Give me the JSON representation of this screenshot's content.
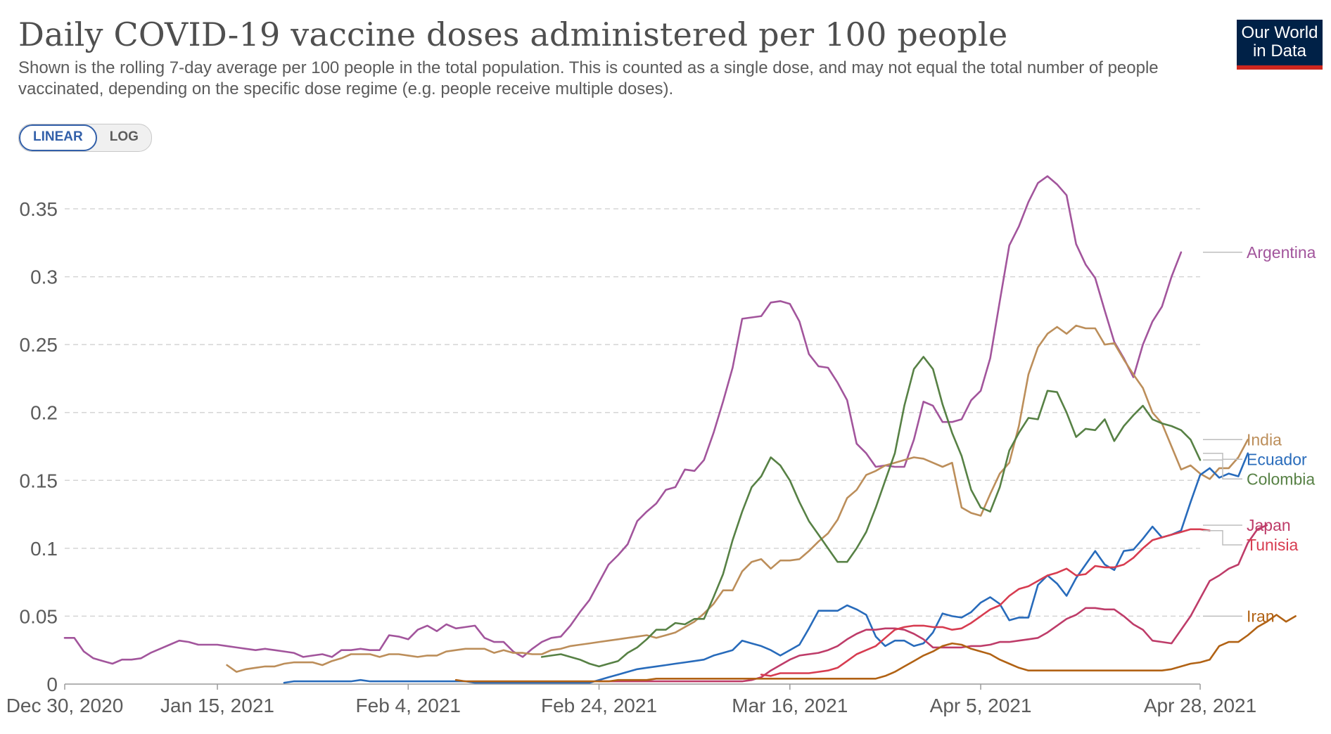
{
  "header": {
    "title": "Daily COVID-19 vaccine doses administered per 100 people",
    "subtitle": "Shown is the rolling 7-day average per 100 people in the total population. This is counted as a single dose, and may not equal the total number of people vaccinated, depending on the specific dose regime (e.g. people receive multiple doses).",
    "logo_line1": "Our World",
    "logo_line2": "in Data"
  },
  "controls": {
    "linear_label": "LINEAR",
    "log_label": "LOG",
    "active": "linear"
  },
  "chart_data": {
    "type": "line",
    "title": "Daily COVID-19 vaccine doses administered per 100 people",
    "x_start": "Dec 30, 2020",
    "x_end": "Apr 28, 2021",
    "xticks": [
      {
        "label": "Dec 30, 2020",
        "day": 0
      },
      {
        "label": "Jan 15, 2021",
        "day": 16
      },
      {
        "label": "Feb 4, 2021",
        "day": 36
      },
      {
        "label": "Feb 24, 2021",
        "day": 56
      },
      {
        "label": "Mar 16, 2021",
        "day": 76
      },
      {
        "label": "Apr 5, 2021",
        "day": 96
      },
      {
        "label": "Apr 28, 2021",
        "day": 119
      }
    ],
    "yticks": [
      0,
      0.05,
      0.1,
      0.15,
      0.2,
      0.25,
      0.3,
      0.35
    ],
    "ytick_labels": [
      "0",
      "0.05",
      "0.1",
      "0.15",
      "0.2",
      "0.25",
      "0.3",
      "0.35"
    ],
    "ylim": [
      0,
      0.35
    ],
    "grid": true,
    "legend": "right",
    "series": [
      {
        "name": "Argentina",
        "color": "#a2559c",
        "start_day": 0,
        "values": [
          0.034,
          0.034,
          0.024,
          0.019,
          0.017,
          0.015,
          0.018,
          0.018,
          0.019,
          0.023,
          0.026,
          0.029,
          0.032,
          0.031,
          0.029,
          0.029,
          0.029,
          0.028,
          0.027,
          0.026,
          0.025,
          0.026,
          0.025,
          0.024,
          0.023,
          0.02,
          0.021,
          0.022,
          0.02,
          0.025,
          0.025,
          0.026,
          0.025,
          0.025,
          0.036,
          0.035,
          0.033,
          0.04,
          0.043,
          0.039,
          0.044,
          0.041,
          0.042,
          0.043,
          0.034,
          0.031,
          0.031,
          0.024,
          0.02,
          0.026,
          0.031,
          0.034,
          0.035,
          0.043,
          0.053,
          0.062,
          0.075,
          0.088,
          0.095,
          0.103,
          0.12,
          0.127,
          0.133,
          0.143,
          0.145,
          0.158,
          0.157,
          0.165,
          0.185,
          0.208,
          0.233,
          0.269,
          0.27,
          0.271,
          0.281,
          0.282,
          0.28,
          0.267,
          0.243,
          0.234,
          0.233,
          0.222,
          0.209,
          0.177,
          0.17,
          0.16,
          0.161,
          0.16,
          0.16,
          0.18,
          0.208,
          0.205,
          0.193,
          0.193,
          0.195,
          0.209,
          0.216,
          0.24,
          0.282,
          0.323,
          0.337,
          0.355,
          0.369,
          0.374,
          0.368,
          0.36,
          0.324,
          0.309,
          0.299,
          0.275,
          0.252,
          0.24,
          0.226,
          0.25,
          0.267,
          0.278,
          0.3,
          0.318
        ]
      },
      {
        "name": "India",
        "color": "#bc8e5a",
        "start_day": 17,
        "values": [
          0.014,
          0.009,
          0.011,
          0.012,
          0.013,
          0.013,
          0.015,
          0.016,
          0.016,
          0.016,
          0.014,
          0.017,
          0.019,
          0.022,
          0.022,
          0.022,
          0.02,
          0.022,
          0.022,
          0.021,
          0.02,
          0.021,
          0.021,
          0.024,
          0.025,
          0.026,
          0.026,
          0.026,
          0.023,
          0.025,
          0.023,
          0.023,
          0.022,
          0.022,
          0.025,
          0.026,
          0.028,
          0.029,
          0.03,
          0.031,
          0.032,
          0.033,
          0.034,
          0.035,
          0.036,
          0.034,
          0.036,
          0.038,
          0.042,
          0.046,
          0.052,
          0.059,
          0.069,
          0.069,
          0.083,
          0.09,
          0.092,
          0.085,
          0.091,
          0.091,
          0.092,
          0.098,
          0.105,
          0.111,
          0.121,
          0.137,
          0.143,
          0.154,
          0.157,
          0.161,
          0.163,
          0.165,
          0.167,
          0.166,
          0.163,
          0.16,
          0.163,
          0.13,
          0.126,
          0.124,
          0.14,
          0.155,
          0.163,
          0.19,
          0.228,
          0.248,
          0.258,
          0.263,
          0.258,
          0.264,
          0.262,
          0.262,
          0.25,
          0.251,
          0.239,
          0.228,
          0.218,
          0.2,
          0.192,
          0.175,
          0.158,
          0.161,
          0.155,
          0.151,
          0.159,
          0.159,
          0.167,
          0.18
        ]
      },
      {
        "name": "Ecuador",
        "color": "#286bbb",
        "start_day": 23,
        "values": [
          0.001,
          0.002,
          0.002,
          0.002,
          0.002,
          0.002,
          0.002,
          0.002,
          0.003,
          0.002,
          0.002,
          0.002,
          0.002,
          0.002,
          0.002,
          0.002,
          0.002,
          0.002,
          0.002,
          0.002,
          0.001,
          0.001,
          0.001,
          0.001,
          0.001,
          0.001,
          0.001,
          0.001,
          0.001,
          0.001,
          0.001,
          0.001,
          0.001,
          0.003,
          0.005,
          0.007,
          0.009,
          0.011,
          0.012,
          0.013,
          0.014,
          0.015,
          0.016,
          0.017,
          0.018,
          0.021,
          0.023,
          0.025,
          0.032,
          0.03,
          0.028,
          0.025,
          0.021,
          0.025,
          0.029,
          0.041,
          0.054,
          0.054,
          0.054,
          0.058,
          0.055,
          0.051,
          0.035,
          0.028,
          0.032,
          0.032,
          0.028,
          0.03,
          0.038,
          0.052,
          0.05,
          0.049,
          0.053,
          0.06,
          0.064,
          0.059,
          0.047,
          0.049,
          0.049,
          0.073,
          0.08,
          0.074,
          0.065,
          0.078,
          0.088,
          0.098,
          0.088,
          0.084,
          0.098,
          0.099,
          0.107,
          0.116,
          0.108,
          0.11,
          0.113,
          0.134,
          0.154,
          0.159,
          0.152,
          0.155,
          0.153,
          0.17
        ]
      },
      {
        "name": "Colombia",
        "color": "#578145",
        "start_day": 50,
        "values": [
          0.02,
          0.021,
          0.022,
          0.02,
          0.018,
          0.015,
          0.013,
          0.015,
          0.017,
          0.023,
          0.027,
          0.033,
          0.04,
          0.04,
          0.045,
          0.044,
          0.048,
          0.048,
          0.064,
          0.081,
          0.106,
          0.127,
          0.145,
          0.153,
          0.167,
          0.161,
          0.15,
          0.134,
          0.12,
          0.11,
          0.1,
          0.09,
          0.09,
          0.1,
          0.112,
          0.13,
          0.15,
          0.17,
          0.205,
          0.232,
          0.241,
          0.232,
          0.206,
          0.185,
          0.168,
          0.143,
          0.13,
          0.127,
          0.145,
          0.172,
          0.185,
          0.196,
          0.195,
          0.216,
          0.215,
          0.2,
          0.182,
          0.188,
          0.187,
          0.195,
          0.179,
          0.19,
          0.198,
          0.205,
          0.195,
          0.192,
          0.19,
          0.187,
          0.18,
          0.165
        ]
      },
      {
        "name": "Japan",
        "color": "#be3c69",
        "start_day": 56,
        "values": [
          0.002,
          0.002,
          0.002,
          0.002,
          0.002,
          0.002,
          0.002,
          0.002,
          0.002,
          0.002,
          0.002,
          0.002,
          0.002,
          0.002,
          0.002,
          0.002,
          0.003,
          0.005,
          0.01,
          0.014,
          0.018,
          0.021,
          0.022,
          0.023,
          0.025,
          0.028,
          0.033,
          0.037,
          0.04,
          0.04,
          0.041,
          0.041,
          0.04,
          0.037,
          0.033,
          0.027,
          0.027,
          0.027,
          0.027,
          0.028,
          0.028,
          0.029,
          0.031,
          0.031,
          0.032,
          0.033,
          0.034,
          0.038,
          0.043,
          0.048,
          0.051,
          0.056,
          0.056,
          0.055,
          0.055,
          0.05,
          0.044,
          0.04,
          0.032,
          0.031,
          0.03,
          0.04,
          0.05,
          0.063,
          0.076,
          0.08,
          0.085,
          0.088,
          0.104,
          0.114,
          0.117
        ]
      },
      {
        "name": "Tunisia",
        "color": "#d73c50",
        "start_day": 73,
        "values": [
          0.007,
          0.006,
          0.008,
          0.008,
          0.008,
          0.008,
          0.009,
          0.01,
          0.012,
          0.017,
          0.022,
          0.025,
          0.028,
          0.034,
          0.04,
          0.042,
          0.043,
          0.043,
          0.042,
          0.042,
          0.04,
          0.041,
          0.045,
          0.05,
          0.055,
          0.058,
          0.065,
          0.07,
          0.072,
          0.076,
          0.08,
          0.082,
          0.085,
          0.08,
          0.081,
          0.087,
          0.086,
          0.086,
          0.088,
          0.093,
          0.1,
          0.106,
          0.108,
          0.11,
          0.112,
          0.114,
          0.114,
          0.113
        ]
      },
      {
        "name": "Iran",
        "color": "#b16214",
        "start_day": 41,
        "values": [
          0.003,
          0.002,
          0.002,
          0.002,
          0.002,
          0.002,
          0.002,
          0.002,
          0.002,
          0.002,
          0.002,
          0.002,
          0.002,
          0.002,
          0.002,
          0.002,
          0.002,
          0.003,
          0.003,
          0.003,
          0.003,
          0.004,
          0.004,
          0.004,
          0.004,
          0.004,
          0.004,
          0.004,
          0.004,
          0.004,
          0.004,
          0.004,
          0.004,
          0.004,
          0.004,
          0.004,
          0.004,
          0.004,
          0.004,
          0.004,
          0.004,
          0.004,
          0.004,
          0.004,
          0.004,
          0.006,
          0.009,
          0.013,
          0.017,
          0.021,
          0.024,
          0.028,
          0.03,
          0.029,
          0.026,
          0.024,
          0.022,
          0.018,
          0.015,
          0.012,
          0.01,
          0.01,
          0.01,
          0.01,
          0.01,
          0.01,
          0.01,
          0.01,
          0.01,
          0.01,
          0.01,
          0.01,
          0.01,
          0.01,
          0.01,
          0.011,
          0.013,
          0.015,
          0.016,
          0.018,
          0.028,
          0.031,
          0.031,
          0.036,
          0.042,
          0.046,
          0.051,
          0.046,
          0.05
        ]
      }
    ],
    "legend_order": [
      "Argentina",
      "India",
      "Ecuador",
      "Colombia",
      "Japan",
      "Tunisia",
      "Iran"
    ]
  }
}
